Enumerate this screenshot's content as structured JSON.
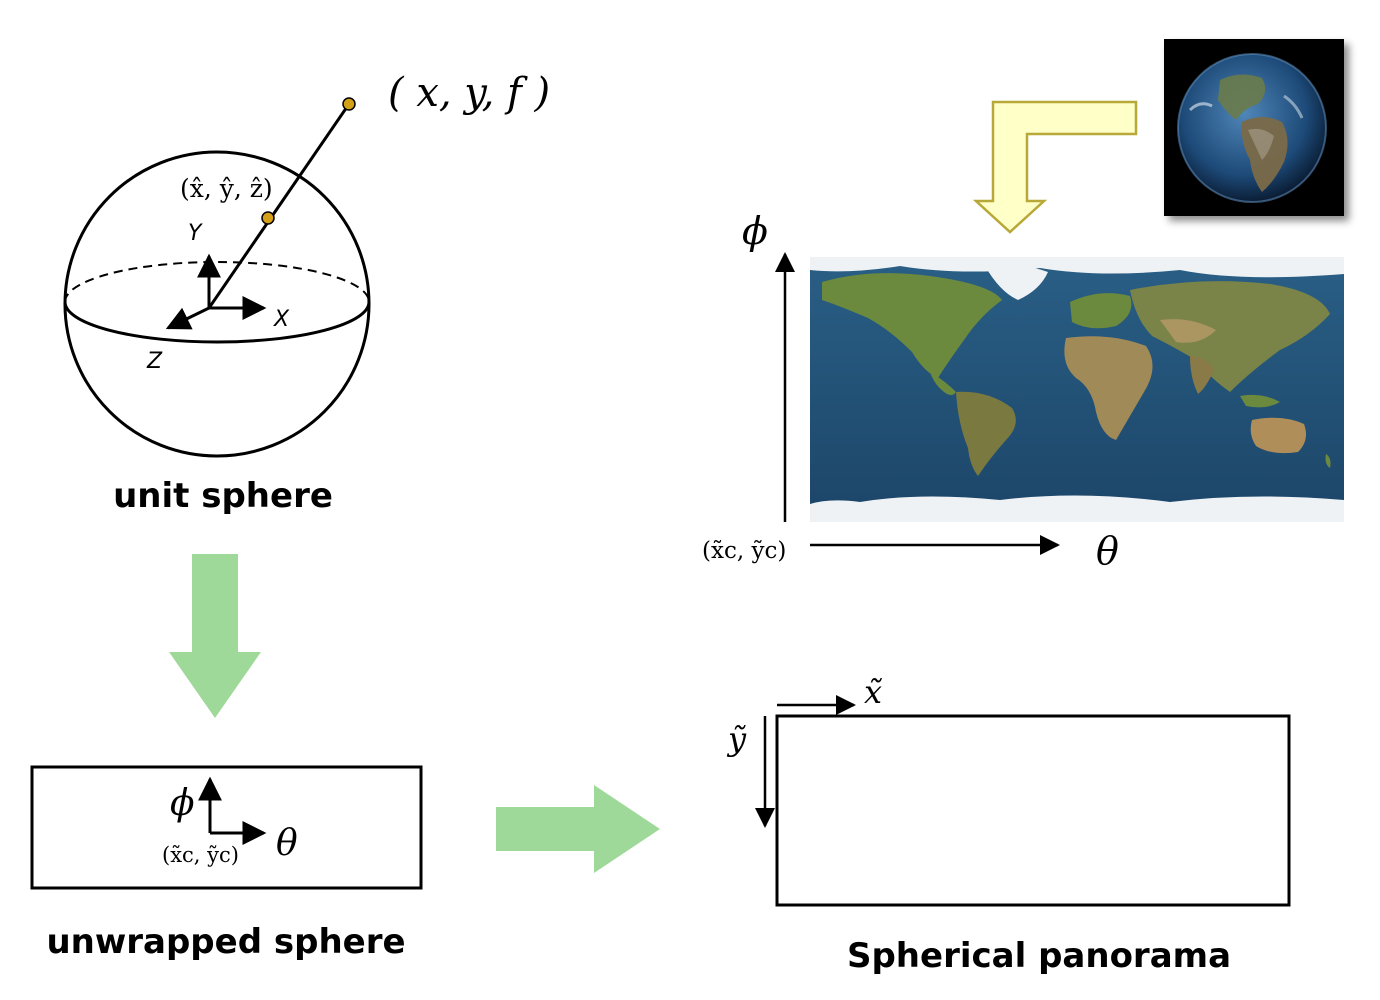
{
  "sphere": {
    "point_label": "( x, y, f )",
    "projected_label": "(x̂, ŷ, ẑ)",
    "axis_x": "X",
    "axis_y": "Y",
    "axis_z": "Z",
    "caption": "unit sphere"
  },
  "unwrapped": {
    "phi": "ϕ",
    "theta": "θ",
    "origin": "(x̃c, ỹc)",
    "caption": "unwrapped sphere"
  },
  "equirect": {
    "phi": "ϕ",
    "theta": "θ",
    "origin": "(x̃c, ỹc)"
  },
  "panorama": {
    "x_label": "x̃",
    "y_label": "ỹ",
    "caption": "Spherical panorama"
  },
  "colors": {
    "green_arrow": "#9fd99a",
    "yellow_arrow_fill": "#ffffc8",
    "yellow_arrow_stroke": "#b8a838",
    "point_dot": "#d4a017",
    "ocean": "#1f4f78",
    "land": "#6b8a3e"
  }
}
